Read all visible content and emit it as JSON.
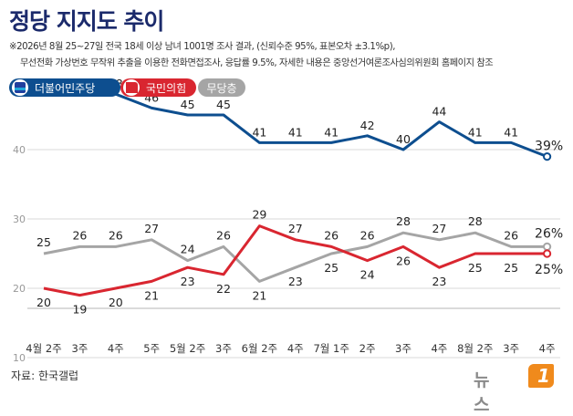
{
  "title": "정당 지지도 추이",
  "notes": [
    "※2026년 8월 25~27일 전국 18세 이상 남녀 1001명 조사 결과, (신뢰수준 95%, 표본오차 ±3.1%p),",
    "무선전화 가상번호 무작위 추출을 이용한 전화면접조사, 응답률 9.5%, 자세한 내용은 중앙선거여론조사심의위원회 홈페이지 참조"
  ],
  "source": "자료: 한국갤럽",
  "brand": {
    "text": "뉴스",
    "mark": "1"
  },
  "chart_data": {
    "type": "line",
    "categories": [
      "4월 2주",
      "3주",
      "4주",
      "5주",
      "5월 2주",
      "3주",
      "6월 2주",
      "4주",
      "7월 1주",
      "2주",
      "3주",
      "4주",
      "8월 2주",
      "3주",
      "4주"
    ],
    "series": [
      {
        "name": "더불어민주당",
        "color": "#0d4e8f",
        "values": [
          48,
          48,
          48,
          46,
          45,
          45,
          41,
          41,
          41,
          42,
          40,
          44,
          41,
          41,
          39
        ]
      },
      {
        "name": "국민의힘",
        "color": "#d92630",
        "values": [
          20,
          19,
          20,
          21,
          23,
          22,
          29,
          27,
          26,
          24,
          26,
          23,
          25,
          25,
          25
        ]
      },
      {
        "name": "무당층",
        "color": "#a5a5a5",
        "values": [
          25,
          26,
          26,
          27,
          24,
          26,
          21,
          23,
          25,
          26,
          28,
          27,
          28,
          26,
          26
        ]
      }
    ],
    "y_ticks": [
      10,
      20,
      30,
      40
    ],
    "ylim": [
      10,
      50
    ],
    "last_label_suffix": "%",
    "grid": true,
    "legend": "top-left"
  }
}
